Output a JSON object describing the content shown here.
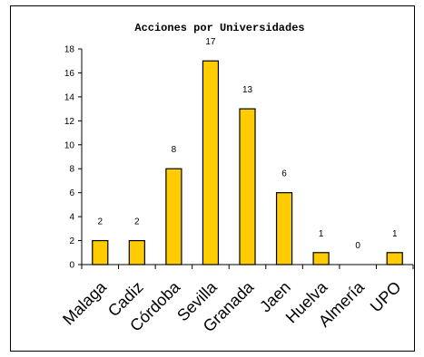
{
  "chart_data": {
    "type": "bar",
    "title": "Acciones por Universidades",
    "categories": [
      "Malaga",
      "Cadiz",
      "Córdoba",
      "Sevilla",
      "Granada",
      "Jaen",
      "Huelva",
      "Almería",
      "UPO"
    ],
    "values": [
      2,
      2,
      8,
      17,
      13,
      6,
      1,
      0,
      1
    ],
    "ylim": [
      0,
      18
    ],
    "yticks": [
      0,
      2,
      4,
      6,
      8,
      10,
      12,
      14,
      16,
      18
    ],
    "xlabel": "",
    "ylabel": "",
    "grid": false,
    "legend": "none",
    "colors": {
      "bar": "#ffcc00",
      "bar_stroke": "#000000",
      "axis": "#000000",
      "frame": "#000000"
    }
  }
}
